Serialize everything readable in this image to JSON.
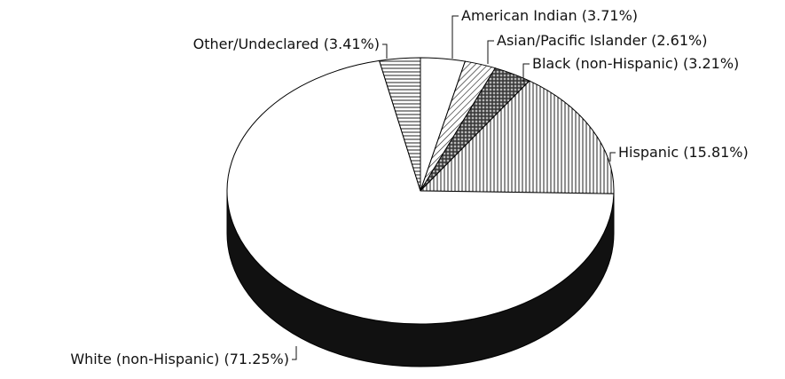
{
  "chart_data": {
    "type": "pie",
    "categories": [
      "American Indian",
      "Asian/Pacific Islander",
      "Black (non-Hispanic)",
      "Hispanic",
      "White (non-Hispanic)",
      "Other/Undeclared"
    ],
    "values": [
      3.71,
      2.61,
      3.21,
      15.81,
      71.25,
      3.41
    ],
    "value_labels": [
      "(3.71%)",
      "(2.61%)",
      "(3.21%)",
      "(15.81%)",
      "(71.25%)",
      "(3.41%)"
    ]
  }
}
